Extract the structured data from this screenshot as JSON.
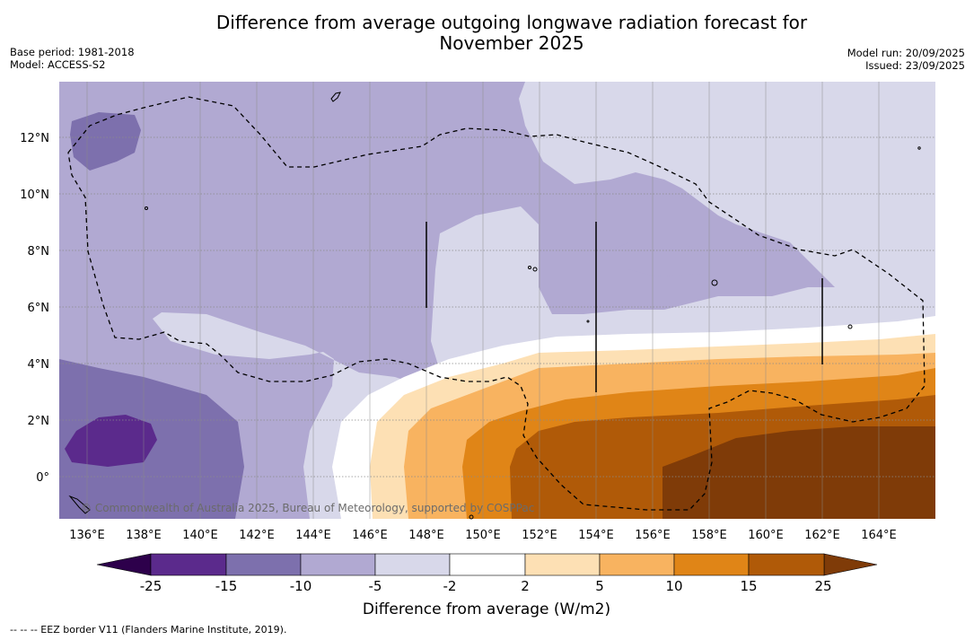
{
  "header": {
    "title_line1": "Difference from average outgoing longwave radiation forecast for",
    "title_line2": "November 2025",
    "base_period": "Base period: 1981-2018",
    "model": "Model: ACCESS-S2",
    "model_run": "Model run: 20/09/2025",
    "issued": "Issued: 23/09/2025"
  },
  "map": {
    "lat_labels": [
      "12°N",
      "10°N",
      "8°N",
      "6°N",
      "4°N",
      "2°N",
      "0°"
    ],
    "lon_labels": [
      "136°E",
      "138°E",
      "140°E",
      "142°E",
      "144°E",
      "146°E",
      "148°E",
      "150°E",
      "152°E",
      "154°E",
      "156°E",
      "158°E",
      "160°E",
      "162°E",
      "164°E"
    ],
    "copyright": "© Commonwealth of Australia 2025, Bureau of Meteorology, supported by COSPPac"
  },
  "colorbar": {
    "ticks": [
      "-25",
      "-15",
      "-10",
      "-5",
      "-2",
      "2",
      "5",
      "10",
      "15",
      "25"
    ],
    "colors": [
      "#5b2a8c",
      "#7d70ad",
      "#b1a9d2",
      "#d8d8ea",
      "#ffffff",
      "#fde0b4",
      "#f8b360",
      "#e08517",
      "#b05a08",
      "#7f3b08",
      "#2d004b"
    ],
    "title": "Difference from average (W/m2)"
  },
  "footer": {
    "legend": "--  --  -- EEZ border V11 (Flanders Marine Institute, 2019)."
  }
}
